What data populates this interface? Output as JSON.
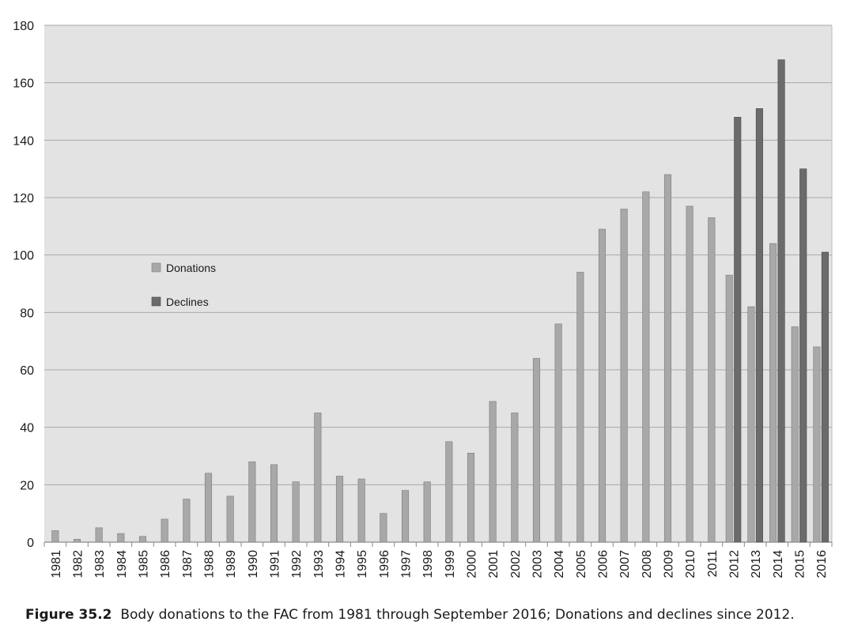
{
  "chart_data": {
    "type": "bar",
    "categories": [
      "1981",
      "1982",
      "1983",
      "1984",
      "1985",
      "1986",
      "1987",
      "1988",
      "1989",
      "1990",
      "1991",
      "1992",
      "1993",
      "1994",
      "1995",
      "1996",
      "1997",
      "1998",
      "1999",
      "2000",
      "2001",
      "2002",
      "2003",
      "2004",
      "2005",
      "2006",
      "2007",
      "2008",
      "2009",
      "2010",
      "2011",
      "2012",
      "2013",
      "2014",
      "2015",
      "2016"
    ],
    "series": [
      {
        "name": "Donations",
        "color": "#a8a8a8",
        "values": [
          4,
          1,
          5,
          3,
          2,
          8,
          15,
          24,
          16,
          28,
          27,
          21,
          45,
          23,
          22,
          10,
          18,
          21,
          35,
          31,
          49,
          45,
          64,
          76,
          94,
          109,
          116,
          122,
          128,
          117,
          113,
          93,
          82,
          104,
          75,
          68
        ]
      },
      {
        "name": "Declines",
        "color": "#6b6b6b",
        "values": [
          null,
          null,
          null,
          null,
          null,
          null,
          null,
          null,
          null,
          null,
          null,
          null,
          null,
          null,
          null,
          null,
          null,
          null,
          null,
          null,
          null,
          null,
          null,
          null,
          null,
          null,
          null,
          null,
          null,
          null,
          null,
          148,
          151,
          168,
          130,
          101
        ]
      }
    ],
    "ylim": [
      0,
      180
    ],
    "yticks": [
      0,
      20,
      40,
      60,
      80,
      100,
      120,
      140,
      160,
      180
    ],
    "grid": true,
    "legend_position": "left-middle",
    "plot_background": "#e3e3e3"
  },
  "caption": {
    "label": "Figure 35.2",
    "text": "Body donations to the FAC from 1981 through September 2016; Donations and declines since 2012."
  }
}
